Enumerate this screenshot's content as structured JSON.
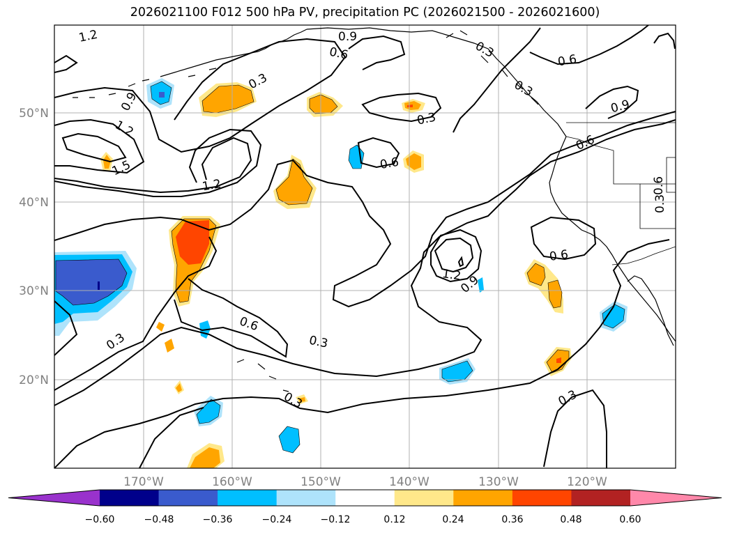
{
  "title": "2026021100 F012 500 hPa PV, precipitation PC (2026021500 - 2026021600)",
  "latitude_labels": [
    "50°N",
    "40°N",
    "30°N",
    "20°N"
  ],
  "longitude_labels": [
    "170°W",
    "160°W",
    "150°W",
    "140°W",
    "130°W",
    "120°W"
  ],
  "pv_contour_labels": [
    "1.2",
    "0.9",
    "0.6",
    "0.3",
    "0.3",
    "0.6",
    "0.9",
    "0.3",
    "0.9",
    "1.2",
    "1.5",
    "1.2",
    "0.3",
    "0.6",
    "0.6",
    "0.3",
    "0.6",
    "0.6",
    "1.2",
    "0.9",
    "0.3",
    "0.6",
    "0.3",
    "0.3",
    "0.3",
    "0.3"
  ],
  "colorbar": {
    "ticks": [
      "−0.60",
      "−0.48",
      "−0.36",
      "−0.24",
      "−0.12",
      "0.12",
      "0.24",
      "0.36",
      "0.48",
      "0.60"
    ],
    "colors": [
      "#9932cc",
      "#00008b",
      "#3a5bcd",
      "#00bfff",
      "#aee3fb",
      "#ffffff",
      "#ffe88a",
      "#ffa500",
      "#ff4500",
      "#b22222",
      "#ff88aa"
    ]
  },
  "colors": {
    "negative_strong": "#3a5bcd",
    "negative_mid": "#00bfff",
    "negative_weak": "#aee3fb",
    "positive_weak": "#ffe88a",
    "positive_mid": "#ffa500",
    "positive_strong": "#ff4500"
  }
}
